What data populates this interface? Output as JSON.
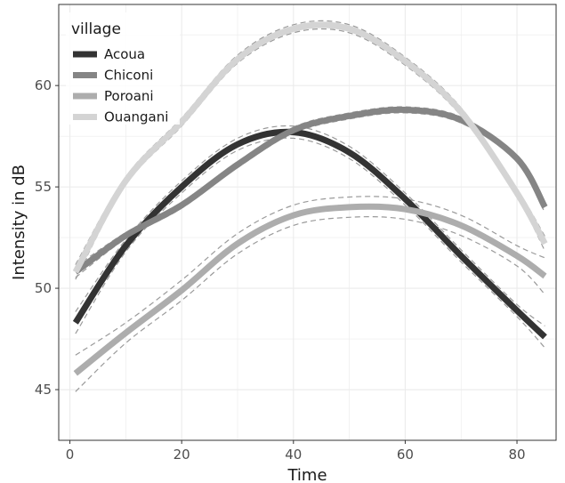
{
  "chart_data": {
    "type": "line",
    "xlabel": "Time",
    "ylabel": "Intensity in dB",
    "xlim": [
      -2,
      87
    ],
    "ylim": [
      42.5,
      64
    ],
    "xticks": [
      0,
      20,
      40,
      60,
      80
    ],
    "yticks": [
      45,
      50,
      55,
      60
    ],
    "grid": true,
    "legend": {
      "title": "village",
      "position": "top-left"
    },
    "confidence_band": "dashed",
    "series": [
      {
        "name": "Acoua",
        "color": "#333333",
        "x": [
          1,
          10,
          20,
          30,
          40,
          50,
          60,
          70,
          80,
          85
        ],
        "y": [
          48.3,
          52.1,
          55.0,
          57.1,
          57.7,
          56.7,
          54.4,
          51.6,
          48.9,
          47.6
        ],
        "band": 0.3
      },
      {
        "name": "Chiconi",
        "color": "#858585",
        "x": [
          1,
          10,
          20,
          30,
          40,
          50,
          60,
          70,
          80,
          85
        ],
        "y": [
          50.8,
          52.6,
          54.1,
          56.1,
          57.8,
          58.5,
          58.8,
          58.3,
          56.4,
          54.0
        ],
        "band": 0.15
      },
      {
        "name": "Poroani",
        "color": "#adadad",
        "x": [
          1,
          10,
          20,
          30,
          40,
          50,
          60,
          70,
          80,
          85
        ],
        "y": [
          45.8,
          47.8,
          49.9,
          52.2,
          53.6,
          54.0,
          53.9,
          53.1,
          51.6,
          50.6
        ],
        "band": 0.5
      },
      {
        "name": "Ouangani",
        "color": "#d4d4d4",
        "x": [
          1,
          10,
          20,
          30,
          40,
          50,
          60,
          70,
          80,
          85
        ],
        "y": [
          50.8,
          55.3,
          58.2,
          61.3,
          62.8,
          62.8,
          61.2,
          58.7,
          54.7,
          52.2
        ],
        "band": 0.2
      }
    ]
  }
}
